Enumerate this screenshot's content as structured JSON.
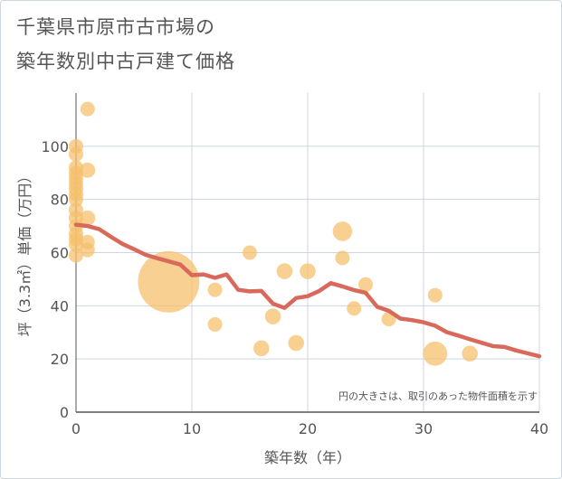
{
  "title_line1": "千葉県市原市古市場の",
  "title_line2": "築年数別中古戸建て価格",
  "chart_data": {
    "type": "scatter",
    "title": "千葉県市原市古市場の築年数別中古戸建て価格",
    "xlabel": "築年数（年）",
    "ylabel": "坪（3.3㎡）単価（万円）",
    "xlim": [
      0,
      40
    ],
    "ylim": [
      0,
      120
    ],
    "xticks": [
      0,
      10,
      20,
      30,
      40
    ],
    "yticks": [
      0,
      20,
      40,
      60,
      80,
      100
    ],
    "grid": true,
    "note": "円の大きさは、取引のあった物件面積を示す",
    "colors": {
      "bubble": "#f5c06c",
      "line": "#d9695a",
      "grid": "#ccd6e0",
      "axis": "#555555"
    },
    "bubbles": [
      {
        "x": 0,
        "y": 100,
        "size": 1
      },
      {
        "x": 0,
        "y": 97,
        "size": 1
      },
      {
        "x": 0,
        "y": 92,
        "size": 1
      },
      {
        "x": 0,
        "y": 90,
        "size": 1
      },
      {
        "x": 0,
        "y": 88,
        "size": 1
      },
      {
        "x": 0,
        "y": 86,
        "size": 1
      },
      {
        "x": 0,
        "y": 84,
        "size": 1
      },
      {
        "x": 0,
        "y": 82,
        "size": 1
      },
      {
        "x": 0,
        "y": 80,
        "size": 1
      },
      {
        "x": 0,
        "y": 76,
        "size": 1
      },
      {
        "x": 0,
        "y": 73,
        "size": 1
      },
      {
        "x": 0,
        "y": 70,
        "size": 1
      },
      {
        "x": 0,
        "y": 67,
        "size": 1
      },
      {
        "x": 0,
        "y": 65,
        "size": 1
      },
      {
        "x": 0,
        "y": 63,
        "size": 1
      },
      {
        "x": 0,
        "y": 59,
        "size": 1
      },
      {
        "x": 1,
        "y": 114,
        "size": 1
      },
      {
        "x": 1,
        "y": 91,
        "size": 1.1
      },
      {
        "x": 1,
        "y": 73,
        "size": 1.1
      },
      {
        "x": 1,
        "y": 64,
        "size": 1
      },
      {
        "x": 1,
        "y": 61,
        "size": 1
      },
      {
        "x": 8,
        "y": 49,
        "size": 18
      },
      {
        "x": 12,
        "y": 46,
        "size": 1
      },
      {
        "x": 12,
        "y": 33,
        "size": 1
      },
      {
        "x": 15,
        "y": 60,
        "size": 1
      },
      {
        "x": 16,
        "y": 24,
        "size": 1.2
      },
      {
        "x": 17,
        "y": 36,
        "size": 1.2
      },
      {
        "x": 18,
        "y": 53,
        "size": 1.2
      },
      {
        "x": 19,
        "y": 26,
        "size": 1.2
      },
      {
        "x": 20,
        "y": 53,
        "size": 1.2
      },
      {
        "x": 23,
        "y": 68,
        "size": 1.8
      },
      {
        "x": 23,
        "y": 58,
        "size": 1
      },
      {
        "x": 24,
        "y": 39,
        "size": 1
      },
      {
        "x": 25,
        "y": 48,
        "size": 1
      },
      {
        "x": 27,
        "y": 35,
        "size": 1
      },
      {
        "x": 31,
        "y": 44,
        "size": 1
      },
      {
        "x": 31,
        "y": 22,
        "size": 2.8
      },
      {
        "x": 34,
        "y": 22,
        "size": 1.2
      }
    ],
    "trend": {
      "x": [
        0,
        1,
        2,
        3,
        4,
        5,
        6,
        7,
        8,
        9,
        10,
        11,
        12,
        13,
        14,
        15,
        16,
        17,
        18,
        19,
        20,
        21,
        22,
        23,
        24,
        25,
        26,
        27,
        28,
        29,
        30,
        31,
        32,
        33,
        34,
        35,
        36,
        37,
        38,
        39,
        40
      ],
      "y": [
        70.5,
        70,
        68.8,
        66,
        63.3,
        61.3,
        59.2,
        57.9,
        56.7,
        55.5,
        51.5,
        51.8,
        50.5,
        51.8,
        46,
        45.4,
        45.6,
        40.8,
        39.2,
        42.9,
        43.6,
        45.6,
        48.5,
        47.3,
        45.9,
        44.9,
        39.6,
        38.1,
        35.2,
        34.6,
        33.8,
        32.5,
        30.1,
        28.8,
        27.4,
        26.1,
        24.8,
        24.5,
        23.2,
        22.1,
        21
      ]
    }
  }
}
